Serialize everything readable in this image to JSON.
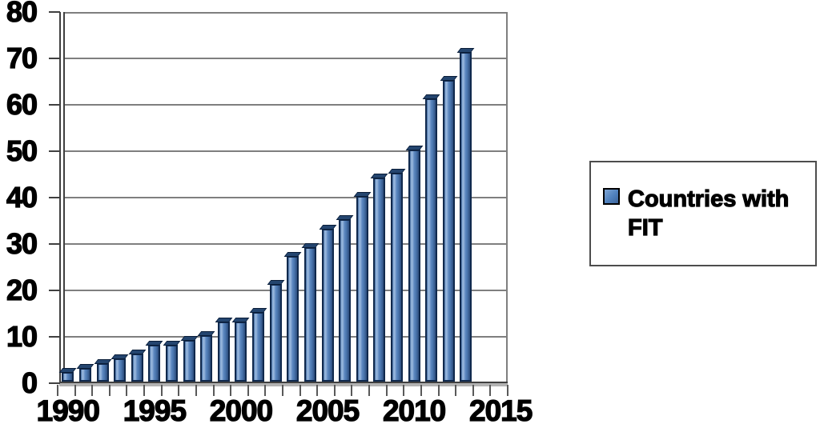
{
  "chart_data": {
    "type": "bar",
    "title": "",
    "xlabel": "",
    "ylabel": "",
    "categories": [
      1990,
      1991,
      1992,
      1993,
      1994,
      1995,
      1996,
      1997,
      1998,
      1999,
      2000,
      2001,
      2002,
      2003,
      2004,
      2005,
      2006,
      2007,
      2008,
      2009,
      2010,
      2011,
      2012,
      2013
    ],
    "values": [
      2,
      3,
      4,
      5,
      6,
      8,
      8,
      9,
      10,
      13,
      13,
      15,
      21,
      27,
      29,
      33,
      35,
      40,
      44,
      45,
      50,
      61,
      65,
      71
    ],
    "series": [
      {
        "name": "Countries with FIT",
        "values": [
          2,
          3,
          4,
          5,
          6,
          8,
          8,
          9,
          10,
          13,
          13,
          15,
          21,
          27,
          29,
          33,
          35,
          40,
          44,
          45,
          50,
          61,
          65,
          71
        ]
      }
    ],
    "ylim": [
      0,
      80
    ],
    "y_ticks": [
      0,
      10,
      20,
      30,
      40,
      50,
      60,
      70,
      80
    ],
    "x_tick_labels": [
      "1990",
      "1995",
      "2000",
      "2005",
      "2010",
      "2015"
    ],
    "x_axis_slots": 26,
    "grid": true,
    "legend_position": "right"
  },
  "legend": {
    "label": "Countries with FIT",
    "marker_color": "#4f81bd"
  },
  "colors": {
    "bar_fill": "#4f81bd",
    "bar_border": "#10294d",
    "gridline": "#7f7f7f",
    "axis": "#404040",
    "text": "#000000",
    "background": "#ffffff"
  }
}
